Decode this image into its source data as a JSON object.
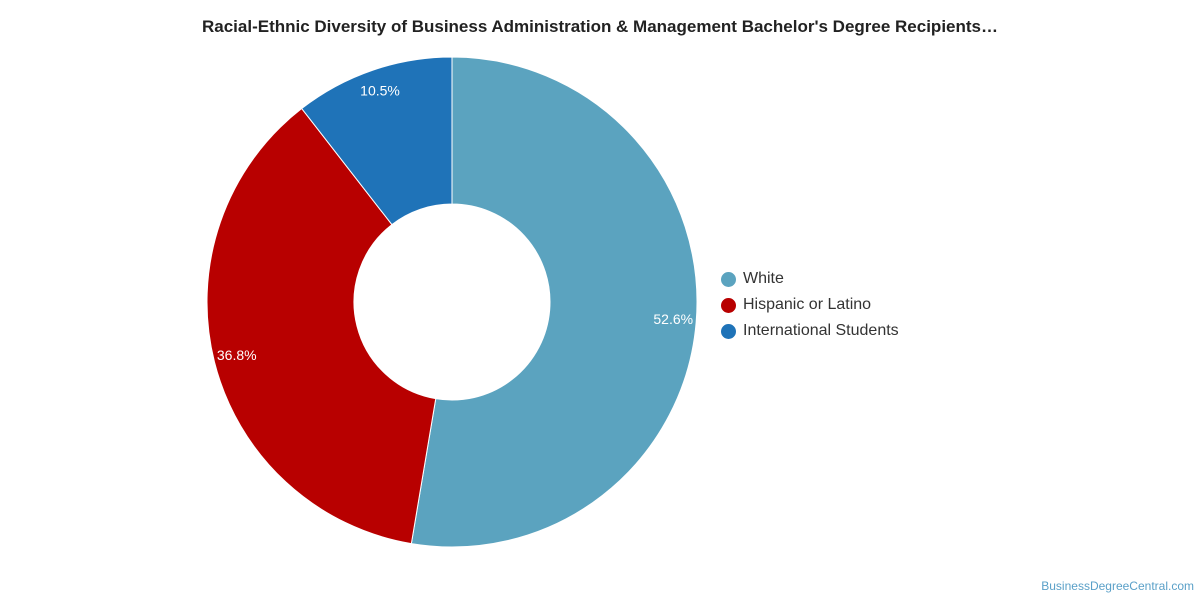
{
  "chart_data": {
    "type": "pie",
    "variant": "donut",
    "title": "Racial-Ethnic Diversity of Business Administration & Management Bachelor's Degree Recipients…",
    "categories": [
      "White",
      "Hispanic or Latino",
      "International Students"
    ],
    "values": [
      52.6,
      36.8,
      10.5
    ],
    "labels": [
      "52.6%",
      "36.8%",
      "10.5%"
    ],
    "colors": [
      "#5ba3bf",
      "#b80000",
      "#1f73b8"
    ],
    "legend_position": "right",
    "start_angle": "top",
    "direction": "clockwise"
  },
  "watermark": "BusinessDegreeCentral.com"
}
